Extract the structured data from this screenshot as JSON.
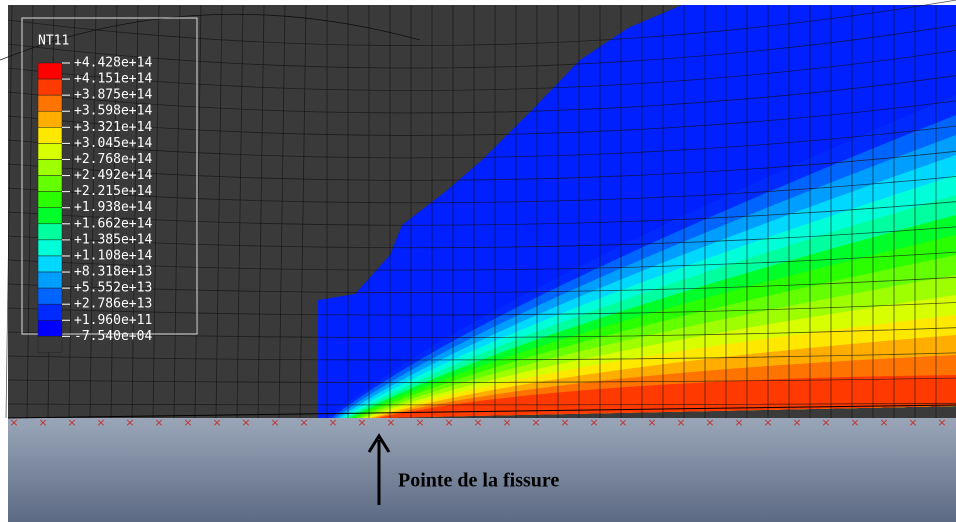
{
  "legend": {
    "title": "NT11",
    "labels": [
      "+4.428e+14",
      "+4.151e+14",
      "+3.875e+14",
      "+3.598e+14",
      "+3.321e+14",
      "+3.045e+14",
      "+2.768e+14",
      "+2.492e+14",
      "+2.215e+14",
      "+1.938e+14",
      "+1.662e+14",
      "+1.385e+14",
      "+1.108e+14",
      "+8.318e+13",
      "+5.552e+13",
      "+2.786e+13",
      "+1.960e+11",
      "-7.540e+04"
    ],
    "colors": [
      "#ff0000",
      "#ff3a00",
      "#ff7400",
      "#ffae00",
      "#ffe800",
      "#d8ff00",
      "#9eff00",
      "#64ff00",
      "#2aff00",
      "#00ff2a",
      "#00ff9e",
      "#00ffd8",
      "#00d8ff",
      "#009eff",
      "#0064ff",
      "#002aff",
      "#0000ff",
      "#3a3a3a"
    ]
  },
  "annotation": "Pointe de la fissure"
}
